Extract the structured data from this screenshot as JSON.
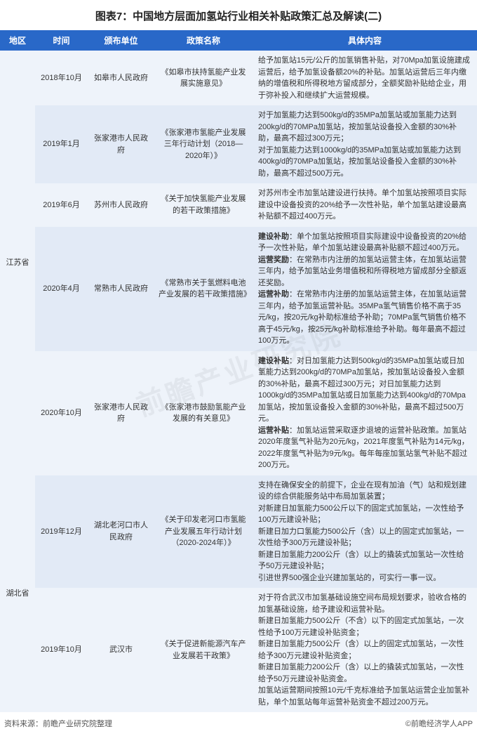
{
  "title": "图表7：中国地方层面加氢站行业相关补贴政策汇总及解读(二)",
  "watermark": "前瞻产业研究院",
  "footer_left": "资料来源：前瞻产业研究院整理",
  "footer_right": "©前瞻经济学人APP",
  "colors": {
    "header_bg": "#2968c8",
    "header_text": "#ffffff",
    "row_odd": "#eef3fa",
    "row_even": "#e2eaf6",
    "text": "#333333"
  },
  "columns": {
    "region": "地区",
    "time": "时间",
    "org": "颁布单位",
    "policy": "政策名称",
    "content": "具体内容"
  },
  "regions": [
    {
      "name": "江苏省",
      "row_count": 5
    },
    {
      "name": "湖北省",
      "row_count": 2
    }
  ],
  "rows": [
    {
      "time": "2018年10月",
      "org": "如皋市人民政府",
      "policy": "《如皋市扶持氢能产业发展实施意见》",
      "content_plain": "给予加氢站15元/公斤的加氢销售补贴，对70Mpa加氢设施建成运营后，给予加氢设备额20%的补贴。加氢站运营后三年内缴纳的增值税和所得税地方留成部分，全额奖励补贴给企业，用于弥补投入和继续扩大运营规模。"
    },
    {
      "time": "2019年1月",
      "org": "张家港市人民政府",
      "policy": "《张家港市氢能产业发展三年行动计划（2018—2020年）》",
      "content_plain": "对于加氢能力达到500kg/d的35MPa加氢站或加氢能力达到200kg/d的70MPa加氢站，按加氢站设备投入金额的30%补助，最高不超过300万元；\n对于加氢能力达到1000kg/d的35MPa加氢站或加氢能力达到400kg/d的70MPa加氢站，按加氢站设备投入金额的30%补助，最高不超过500万元。"
    },
    {
      "time": "2019年6月",
      "org": "苏州市人民政府",
      "policy": "《关于加快氢能产业发展的若干政策措施》",
      "content_plain": "对苏州市全市加氢站建设进行扶持。单个加氢站按照项目实际建设中设备投资的20%给予一次性补贴，单个加氢站建设最高补贴额不超过400万元。"
    },
    {
      "time": "2020年4月",
      "org": "常熟市人民政府",
      "policy": "《常熟市关于氢燃料电池产业发展的若干政策措施》",
      "content_segments": [
        {
          "bold": "建设补助",
          "text": "：单个加氢站按照项目实际建设中设备投资的20%给予一次性补贴，单个加氢站建设最高补贴额不超过400万元。"
        },
        {
          "bold": "运营奖励",
          "text": "：在常熟市内注册的加氢站运营主体，在加氢站运营三年内，给予加氢站业务增值税和所得税地方留成部分全额返还奖励。"
        },
        {
          "bold": "运营补助",
          "text": "：在常熟市内注册的加氢站运营主体，在加氢站运营三年内，给予加氢运营补贴。35MPa氢气销售价格不高于35元/kg，按20元/kg补助标准给予补助；70MPa氢气销售价格不高于45元/kg，按25元/kg补助标准给予补助。每年最高不超过100万元。"
        }
      ]
    },
    {
      "time": "2020年10月",
      "org": "张家港市人民政府",
      "policy": "《张家港市鼓励氢能产业发展的有关意见》",
      "content_segments": [
        {
          "bold": "建设补贴",
          "text": "：对日加氢能力达到500kg/d的35MPa加氢站或日加氢能力达到200kg/d的70MPa加氢站，按加氢站设备投入金额的30%补贴，最高不超过300万元；对日加氢能力达到1000kg/d的35MPa加氢站或日加氢能力达到400kg/d的70Mpa加氢站，按加氢设备投入金额的30%补贴，最高不超过500万元。"
        },
        {
          "bold": "运营补贴",
          "text": "：加氢站运营采取逐步退坡的运营补贴政策。加氢站2020年度氢气补贴为20元/kg，2021年度氢气补贴为14元/kg，2022年度氢气补贴为9元/kg。每年每座加氢站氢气补贴不超过200万元。"
        }
      ]
    },
    {
      "time": "2019年12月",
      "org": "湖北老河口市人民政府",
      "policy": "《关于印发老河口市氢能产业发展五年行动计划（2020-2024年）》",
      "content_plain": "支持在确保安全的前提下，企业在现有加油（气）站和规划建设的综合供能服务站中布局加氢装置；\n对新建日加氢能力500公斤以下的固定式加氢站，一次性给予100万元建设补贴；\n新建日加力口氢能力500公斤（含）以上的固定式加氢站，一次性给予300万元建设补贴；\n新建日加氢能力200公斤（含）以上的撬装式加氢站一次性给予50万元建设补贴；\n引进世界500强企业兴建加氢站的，可实行一事一议。"
    },
    {
      "time": "2019年10月",
      "org": "武汉市",
      "policy": "《关于促进新能源汽车产业发展若干政策》",
      "content_plain": "对于符合武汉市加氢基础设施空间布局规划要求，验收合格的加氢基础设施，给予建设和运营补贴。\n新建日加氢能力500公斤（不含）以下的固定式加氢站，一次性给予100万元建设补贴资金；\n新建日加氢能力500公斤（含）以上的固定式加氢站，一次性给予300万元建设补贴资金；\n新建日加氢能力200公斤（含）以上的撬装式加氢站，一次性给予50万元建设补贴资金。\n加氢站运营期间按照10元/千克标准给予加氢站运营企业加氢补贴，单个加氢站每年运营补贴资金不超过200万元。"
    }
  ]
}
